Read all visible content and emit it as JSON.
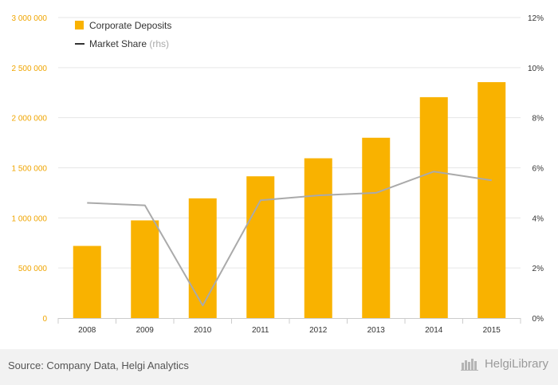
{
  "chart_data": {
    "type": "bar",
    "categories": [
      "2008",
      "2009",
      "2010",
      "2011",
      "2012",
      "2013",
      "2014",
      "2015"
    ],
    "series": [
      {
        "name": "Corporate Deposits",
        "type": "bar",
        "axis": "left",
        "values": [
          720000,
          975000,
          1195000,
          1415000,
          1595000,
          1800000,
          2205000,
          2355000
        ]
      },
      {
        "name": "Market Share",
        "type": "line",
        "axis": "right",
        "values": [
          4.6,
          4.5,
          0.5,
          4.7,
          4.9,
          5.0,
          5.85,
          5.5
        ]
      }
    ],
    "y_left": {
      "ylim": [
        0,
        3000000
      ],
      "ticks": [
        "0",
        "500 000",
        "1 000 000",
        "1 500 000",
        "2 000 000",
        "2 500 000",
        "3 000 000"
      ]
    },
    "y_right": {
      "ylim": [
        0,
        12
      ],
      "ticks": [
        "0%",
        "2%",
        "4%",
        "6%",
        "8%",
        "10%",
        "12%"
      ]
    },
    "legend": {
      "position": "top-left",
      "items": [
        "Corporate Deposits",
        "Market Share"
      ],
      "suffix": "(rhs)"
    },
    "grid": true,
    "colors": {
      "bar": "#f9b200",
      "line": "#aaaaaa",
      "left_axis_text": "#f0a500",
      "right_axis_text": "#333333",
      "grid": "#e6e6e6"
    }
  },
  "footer": {
    "source": "Source: Company Data, Helgi Analytics",
    "brand": "HelgiLibrary"
  }
}
